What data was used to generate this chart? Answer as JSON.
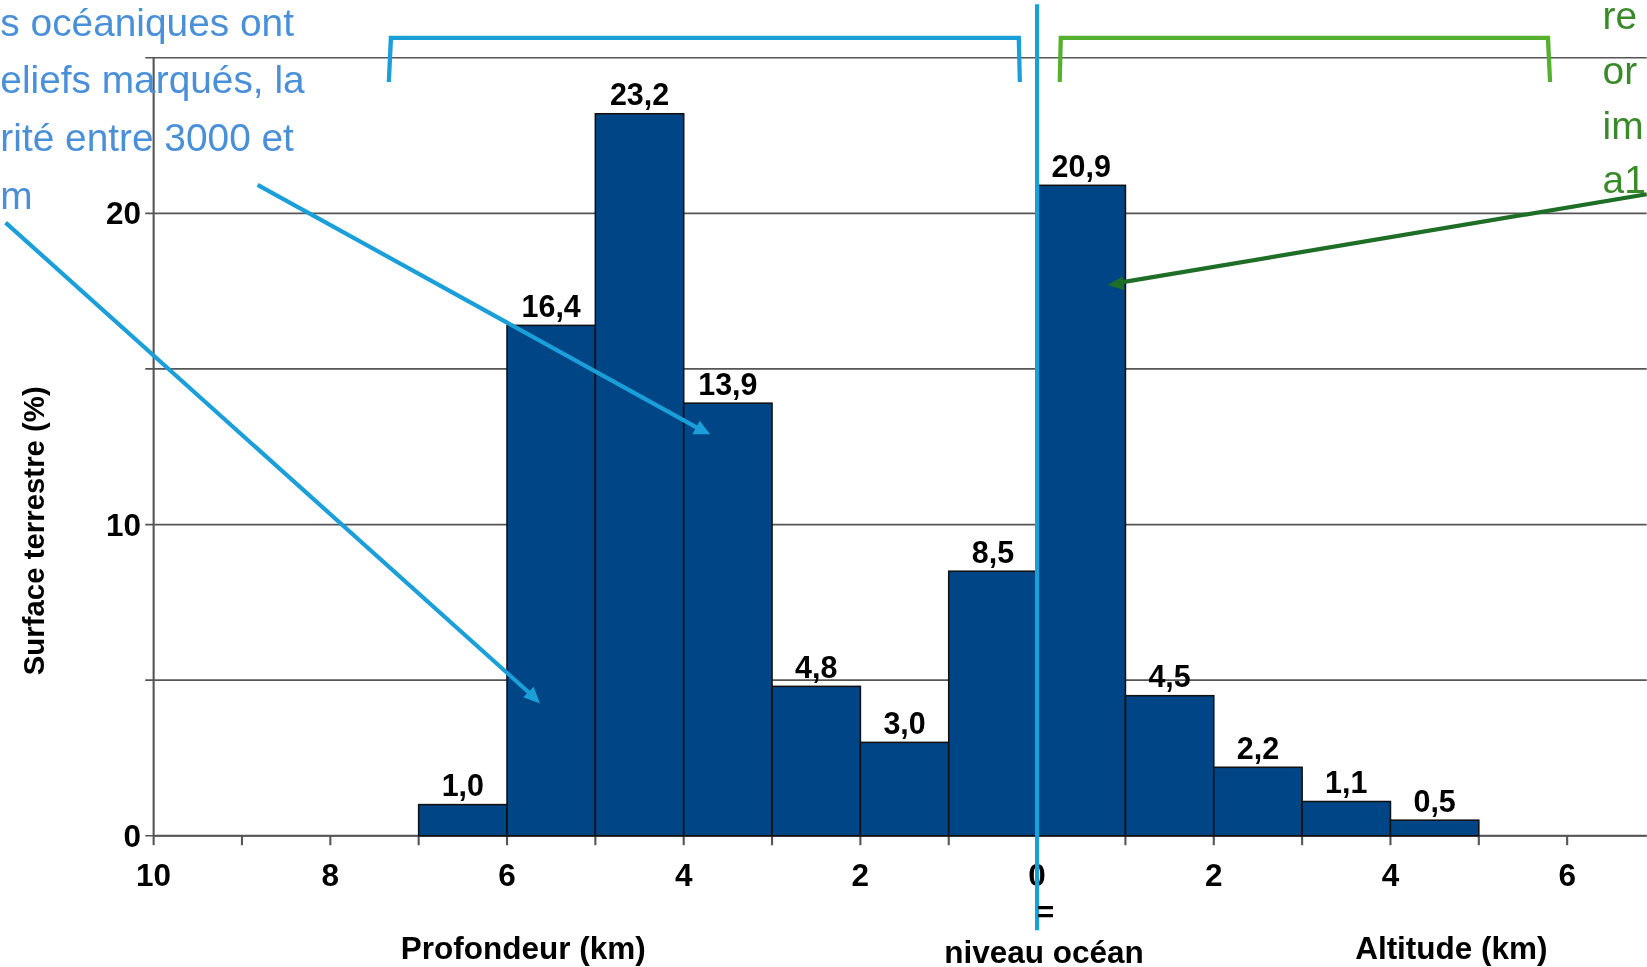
{
  "chart_data": {
    "type": "histogram",
    "ylabel": "Surface terrestre (%)",
    "xlabel": "Profondeur (km)",
    "bins": [
      -7,
      -6,
      -5,
      -4,
      -3,
      -2,
      -1,
      0,
      1,
      2,
      3,
      4,
      5
    ],
    "values": [
      1.0,
      16.4,
      23.2,
      13.9,
      4.8,
      3.0,
      8.5,
      20.9,
      4.5,
      2.2,
      1.1,
      0.5
    ],
    "value_labels": [
      "1,0",
      "16,4",
      "23,2",
      "13,9",
      "4,8",
      "3,0",
      "8,5",
      "20,9",
      "4,5",
      "2,2",
      "1,1",
      "0,5"
    ],
    "color": "#004687",
    "xlim": [
      -10,
      6.9
    ],
    "xticks": [
      {
        "value": -10,
        "label": "10"
      },
      {
        "value": -9,
        "label": null
      },
      {
        "value": -8,
        "label": "8"
      },
      {
        "value": -7,
        "label": null
      },
      {
        "value": -6,
        "label": "6"
      },
      {
        "value": -5,
        "label": null
      },
      {
        "value": -4,
        "label": "4"
      },
      {
        "value": -3,
        "label": null
      },
      {
        "value": -2,
        "label": "2"
      },
      {
        "value": -1,
        "label": null
      },
      0,
      {
        "value": 1,
        "label": null
      },
      2,
      {
        "value": 3,
        "label": null
      },
      4,
      {
        "value": 5,
        "label": null
      },
      6
    ],
    "ylim": [
      0,
      25
    ],
    "yticks": [
      0,
      {
        "value": 5,
        "label": null
      },
      10,
      {
        "value": 15,
        "label": null
      },
      20,
      {
        "value": 25,
        "label": null
      }
    ],
    "grid": "y",
    "ref_lines": [
      {
        "axis": "x",
        "value": 0,
        "label": "=",
        "color": "#1a9fd8"
      }
    ],
    "annotations": [
      "niveau océan",
      "Altitude (km)",
      "s océaniques ont\neliefs marqués, la\nrité entre 3000 et\nm",
      "re\nor\nim\na1"
    ]
  }
}
